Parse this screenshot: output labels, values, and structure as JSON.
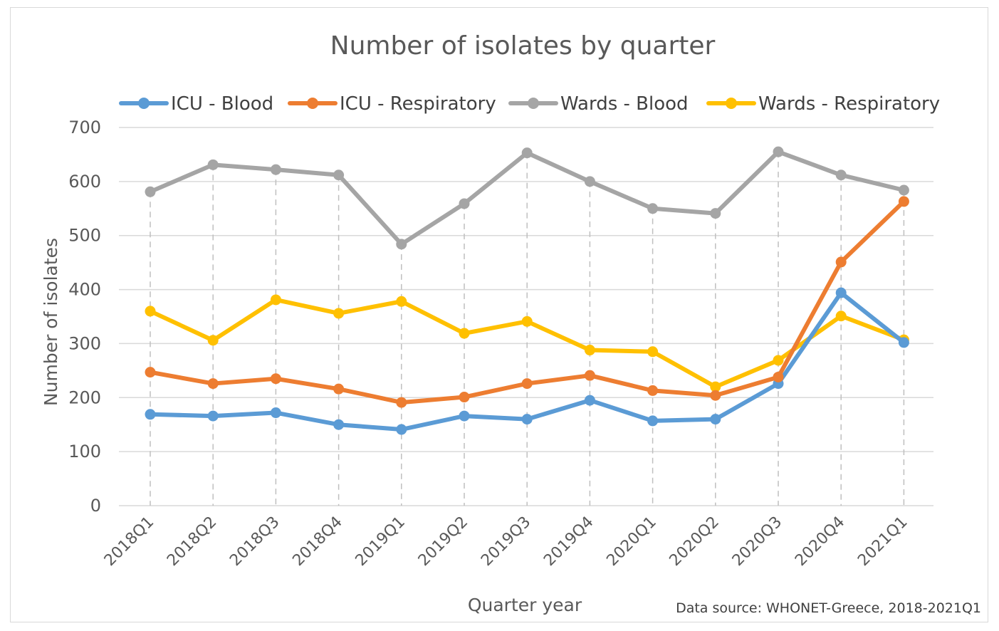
{
  "chart_data": {
    "type": "line",
    "title": "Number of isolates by quarter",
    "xlabel": "Quarter year",
    "ylabel": "Number of isolates",
    "ylim": [
      0,
      700
    ],
    "yticks": [
      0,
      100,
      200,
      300,
      400,
      500,
      600,
      700
    ],
    "grid": true,
    "legend_position": "top",
    "categories": [
      "2018Q1",
      "2018Q2",
      "2018Q3",
      "2018Q4",
      "2019Q1",
      "2019Q2",
      "2019Q3",
      "2019Q4",
      "2020Q1",
      "2020Q2",
      "2020Q3",
      "2020Q4",
      "2021Q1"
    ],
    "series": [
      {
        "name": "ICU - Blood",
        "color": "#5b9bd5",
        "values": [
          169,
          166,
          172,
          150,
          141,
          166,
          160,
          195,
          157,
          160,
          226,
          394,
          302
        ]
      },
      {
        "name": "ICU - Respiratory",
        "color": "#ed7d31",
        "values": [
          247,
          226,
          235,
          216,
          191,
          201,
          226,
          241,
          213,
          204,
          238,
          451,
          563
        ]
      },
      {
        "name": "Wards - Blood",
        "color": "#a5a5a5",
        "values": [
          581,
          631,
          622,
          612,
          484,
          559,
          653,
          600,
          550,
          541,
          655,
          612,
          584
        ]
      },
      {
        "name": "Wards - Respiratory",
        "color": "#ffc000",
        "values": [
          360,
          306,
          381,
          356,
          378,
          319,
          341,
          288,
          285,
          220,
          269,
          351,
          307
        ]
      }
    ],
    "annotation": "Data source: WHONET-Greece, 2018-2021Q1"
  }
}
